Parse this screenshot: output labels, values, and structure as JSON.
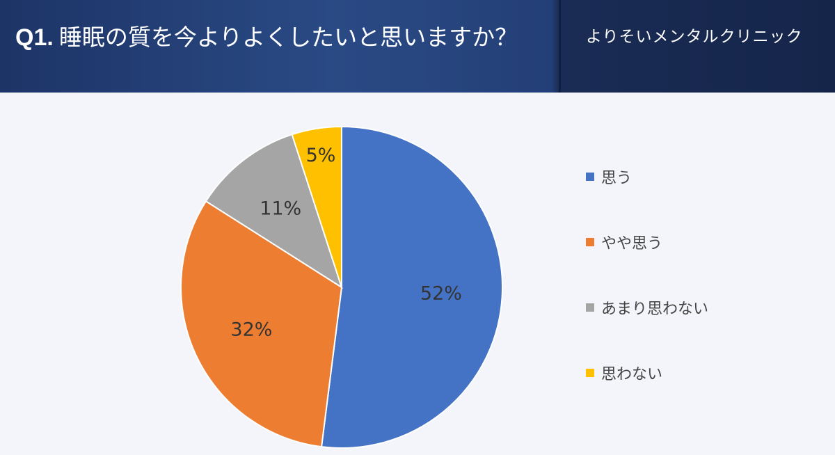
{
  "header": {
    "question_number": "Q1.",
    "question_text": "睡眠の質を今よりよくしたいと思いますか？",
    "organization": "よりそいメンタルクリニック"
  },
  "chart_data": {
    "type": "pie",
    "title": "",
    "start_angle_deg": 0,
    "direction": "clockwise",
    "legend_position": "right",
    "slices": [
      {
        "label": "思う",
        "value": 52,
        "display": "52%",
        "color": "#4472c4"
      },
      {
        "label": "やや思う",
        "value": 32,
        "display": "32%",
        "color": "#ed7d31"
      },
      {
        "label": "あまり思わない",
        "value": 11,
        "display": "11%",
        "color": "#a5a5a5"
      },
      {
        "label": "思わない",
        "value": 5,
        "display": "5%",
        "color": "#ffc000"
      }
    ]
  }
}
